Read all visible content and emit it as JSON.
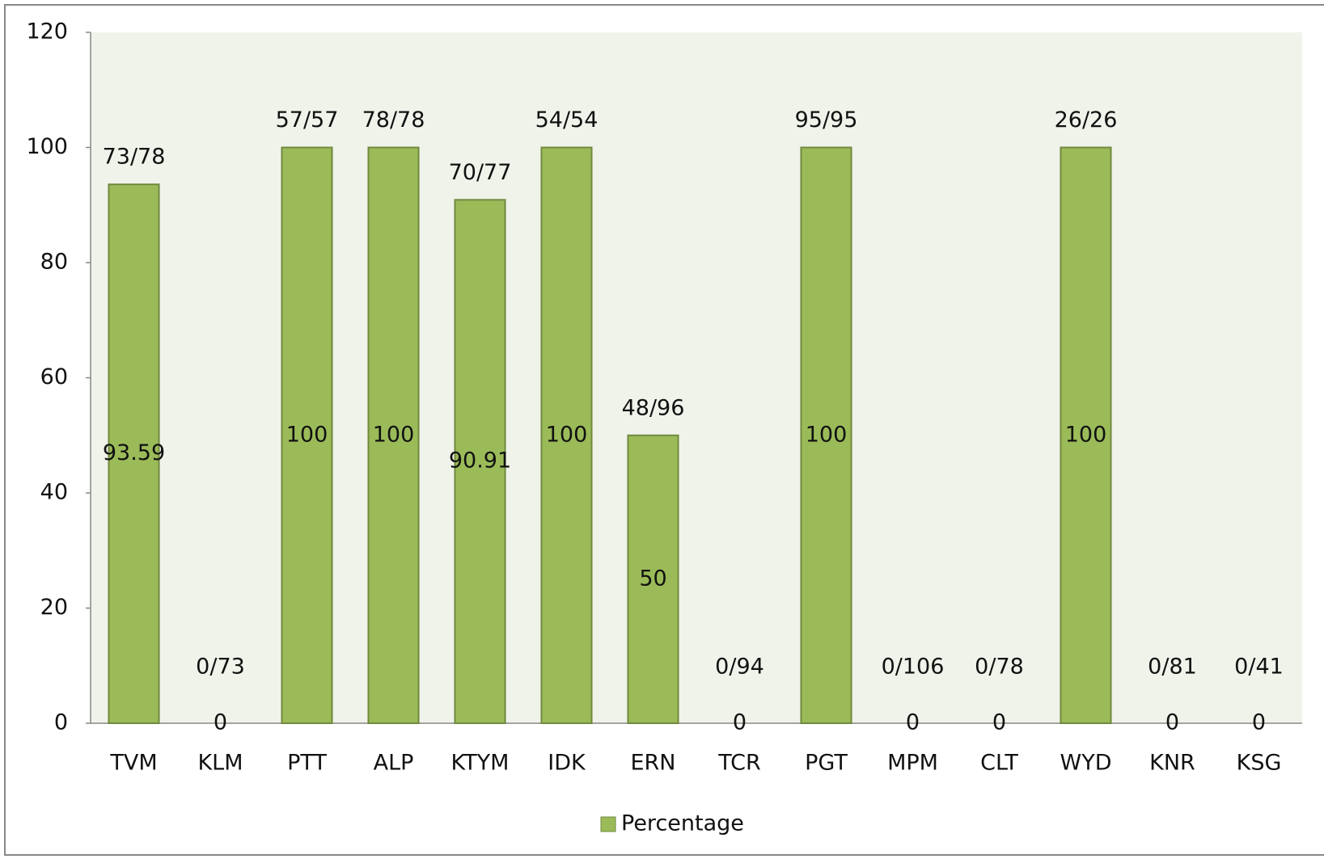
{
  "chart_data": {
    "type": "bar",
    "categories": [
      "TVM",
      "KLM",
      "PTT",
      "ALP",
      "KTYM",
      "IDK",
      "ERN",
      "TCR",
      "PGT",
      "MPM",
      "CLT",
      "WYD",
      "KNR",
      "KSG"
    ],
    "series": [
      {
        "name": "Percentage",
        "color": "#9bbb59",
        "values": [
          93.59,
          0,
          100,
          100,
          90.91,
          100,
          50,
          0,
          100,
          0,
          0,
          100,
          0,
          0
        ]
      }
    ],
    "annotations": [
      "73/78",
      "0/73",
      "57/57",
      "78/78",
      "70/77",
      "54/54",
      "48/96",
      "0/94",
      "95/95",
      "0/106",
      "0/78",
      "26/26",
      "0/81",
      "0/41"
    ],
    "ylim": [
      0,
      120
    ],
    "yticks": [
      0,
      20,
      40,
      60,
      80,
      100,
      120
    ],
    "legend": "bottom"
  }
}
